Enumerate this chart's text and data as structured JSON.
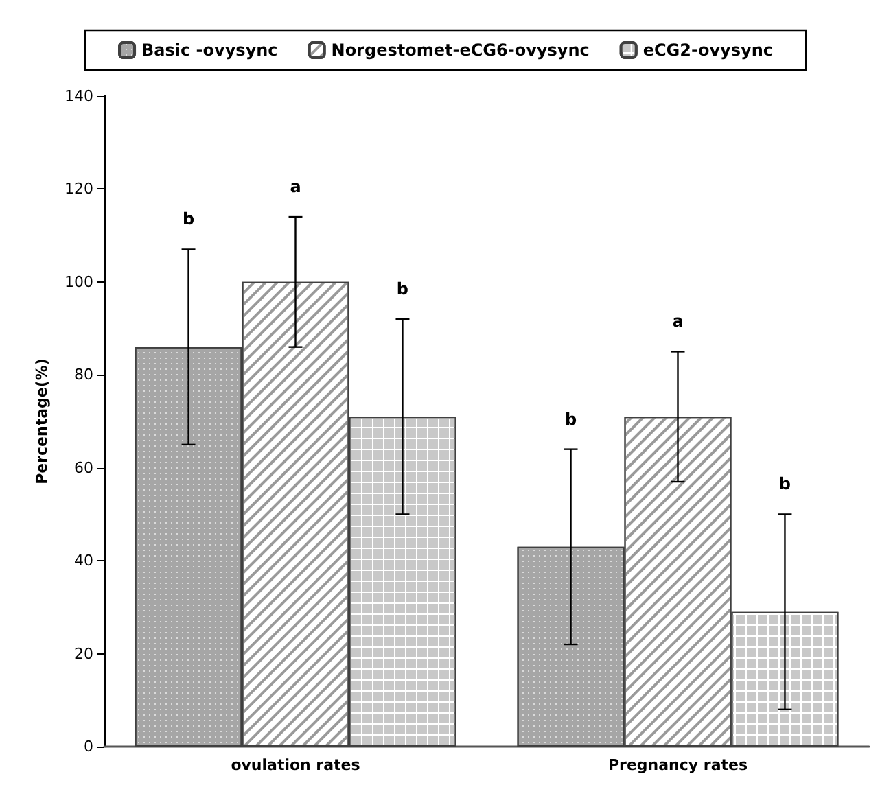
{
  "chart_data": {
    "type": "bar",
    "ylabel": "Percentage(%)",
    "categories": [
      "ovulation rates",
      "Pregnancy rates"
    ],
    "series": [
      {
        "name": "Basic -ovysync",
        "color": "#a6a6a6",
        "values": [
          86,
          43
        ],
        "errors": [
          21,
          21
        ]
      },
      {
        "name": "Norgestomet-eCG6-ovysync",
        "color": "#ffffff",
        "values": [
          100,
          71
        ],
        "errors": [
          14,
          14
        ]
      },
      {
        "name": "eCG2-ovysync",
        "color": "#ffffff",
        "values": [
          71,
          29
        ],
        "errors": [
          21,
          21
        ]
      }
    ],
    "annotations": [
      "b",
      "a",
      "b",
      "b",
      "a",
      "b"
    ],
    "ylim": [
      0,
      140
    ],
    "yticks": [
      0,
      20,
      40,
      60,
      80,
      100,
      120,
      140
    ],
    "grid": false,
    "legend": "top"
  }
}
